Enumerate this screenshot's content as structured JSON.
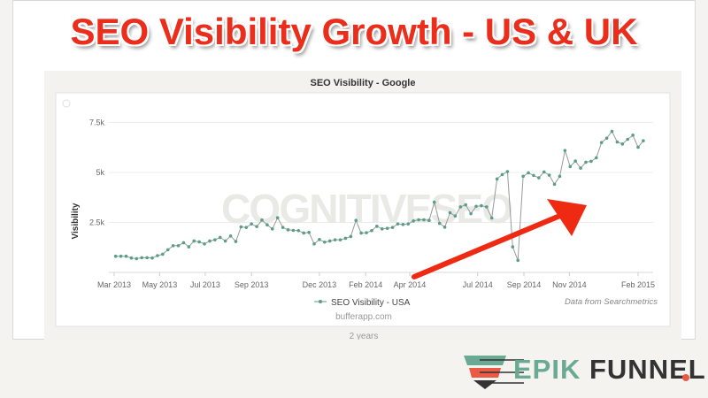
{
  "headline": "SEO Visibility Growth - US & UK",
  "logo": {
    "part1": "EPIK",
    "part2": "FUNNEL",
    "colors": {
      "green": "#6aaa95",
      "red": "#ea5a45",
      "dark": "#333333"
    }
  },
  "accent_color": "#ea2e1b",
  "chart_data": {
    "type": "line",
    "title": "SEO Visibility - Google",
    "ylabel": "Visibility",
    "xlabel": "",
    "ylim": [
      0,
      8000
    ],
    "yticks": [
      {
        "v": 2500,
        "label": "2.5k"
      },
      {
        "v": 5000,
        "label": "5k"
      },
      {
        "v": 7500,
        "label": "7.5k"
      }
    ],
    "xticks": [
      {
        "date": "2013-03-01",
        "label": "Mar 2013"
      },
      {
        "date": "2013-05-01",
        "label": "May 2013"
      },
      {
        "date": "2013-07-01",
        "label": "Jul 2013"
      },
      {
        "date": "2013-09-01",
        "label": "Sep 2013"
      },
      {
        "date": "2013-12-01",
        "label": "Dec 2013"
      },
      {
        "date": "2014-02-01",
        "label": "Feb 2014"
      },
      {
        "date": "2014-04-01",
        "label": "Apr 2014"
      },
      {
        "date": "2014-07-01",
        "label": "Jul 2014"
      },
      {
        "date": "2014-09-01",
        "label": "Sep 2014"
      },
      {
        "date": "2014-11-01",
        "label": "Nov 2014"
      },
      {
        "date": "2015-02-01",
        "label": "Feb 2015"
      }
    ],
    "grid": true,
    "legend": "bottom-center",
    "series": [
      {
        "name": "SEO Visibility - USA",
        "color": "#5a9e8a",
        "points": [
          [
            "2013-03-03",
            809
          ],
          [
            "2013-03-10",
            809
          ],
          [
            "2013-03-17",
            809
          ],
          [
            "2013-03-24",
            720
          ],
          [
            "2013-03-31",
            690
          ],
          [
            "2013-04-07",
            735
          ],
          [
            "2013-04-14",
            735
          ],
          [
            "2013-04-21",
            720
          ],
          [
            "2013-04-28",
            838
          ],
          [
            "2013-05-05",
            911
          ],
          [
            "2013-05-12",
            1132
          ],
          [
            "2013-05-19",
            1338
          ],
          [
            "2013-05-26",
            1338
          ],
          [
            "2013-06-02",
            1485
          ],
          [
            "2013-06-09",
            1279
          ],
          [
            "2013-06-16",
            1573
          ],
          [
            "2013-06-23",
            1529
          ],
          [
            "2013-06-30",
            1426
          ],
          [
            "2013-07-07",
            1573
          ],
          [
            "2013-07-14",
            1632
          ],
          [
            "2013-07-21",
            1749
          ],
          [
            "2013-07-28",
            1573
          ],
          [
            "2013-08-04",
            1823
          ],
          [
            "2013-08-11",
            1544
          ],
          [
            "2013-08-18",
            2279
          ],
          [
            "2013-08-25",
            2250
          ],
          [
            "2013-09-01",
            2426
          ],
          [
            "2013-09-08",
            2293
          ],
          [
            "2013-09-15",
            2617
          ],
          [
            "2013-09-22",
            2381
          ],
          [
            "2013-09-29",
            2176
          ],
          [
            "2013-10-06",
            2734
          ],
          [
            "2013-10-13",
            2250
          ],
          [
            "2013-10-20",
            2132
          ],
          [
            "2013-10-27",
            2102
          ],
          [
            "2013-11-03",
            2088
          ],
          [
            "2013-11-10",
            1970
          ],
          [
            "2013-11-17",
            2000
          ],
          [
            "2013-11-24",
            1426
          ],
          [
            "2013-12-01",
            1646
          ],
          [
            "2013-12-08",
            1514
          ],
          [
            "2013-12-15",
            1573
          ],
          [
            "2013-12-22",
            1632
          ],
          [
            "2013-12-29",
            1632
          ],
          [
            "2014-01-05",
            1705
          ],
          [
            "2014-01-12",
            1793
          ],
          [
            "2014-01-19",
            2602
          ],
          [
            "2014-01-26",
            1970
          ],
          [
            "2014-02-02",
            1985
          ],
          [
            "2014-02-09",
            2088
          ],
          [
            "2014-02-16",
            2308
          ],
          [
            "2014-02-23",
            2176
          ],
          [
            "2014-03-02",
            2205
          ],
          [
            "2014-03-09",
            2250
          ],
          [
            "2014-03-16",
            2426
          ],
          [
            "2014-03-23",
            2396
          ],
          [
            "2014-03-30",
            2426
          ],
          [
            "2014-04-06",
            2573
          ],
          [
            "2014-04-13",
            2631
          ],
          [
            "2014-04-20",
            2631
          ],
          [
            "2014-04-27",
            2602
          ],
          [
            "2014-05-04",
            3513
          ],
          [
            "2014-05-11",
            2455
          ],
          [
            "2014-05-18",
            2264
          ],
          [
            "2014-05-25",
            2984
          ],
          [
            "2014-06-01",
            2822
          ],
          [
            "2014-06-08",
            3278
          ],
          [
            "2014-06-15",
            3381
          ],
          [
            "2014-06-22",
            2940
          ],
          [
            "2014-06-29",
            3307
          ],
          [
            "2014-07-06",
            3337
          ],
          [
            "2014-07-13",
            3278
          ],
          [
            "2014-07-20",
            2720
          ],
          [
            "2014-07-27",
            4675
          ],
          [
            "2014-08-03",
            4895
          ],
          [
            "2014-08-10",
            5042
          ],
          [
            "2014-08-17",
            1279
          ],
          [
            "2014-08-24",
            603
          ],
          [
            "2014-08-31",
            4807
          ],
          [
            "2014-09-07",
            4983
          ],
          [
            "2014-09-14",
            4851
          ],
          [
            "2014-09-21",
            4733
          ],
          [
            "2014-09-28",
            5027
          ],
          [
            "2014-10-05",
            4866
          ],
          [
            "2014-10-12",
            4410
          ],
          [
            "2014-10-19",
            4807
          ],
          [
            "2014-10-26",
            6100
          ],
          [
            "2014-11-02",
            5292
          ],
          [
            "2014-11-09",
            5571
          ],
          [
            "2014-11-16",
            5218
          ],
          [
            "2014-11-23",
            5512
          ],
          [
            "2014-11-30",
            5557
          ],
          [
            "2014-12-07",
            5733
          ],
          [
            "2014-12-14",
            6497
          ],
          [
            "2014-12-21",
            6718
          ],
          [
            "2014-12-28",
            7056
          ],
          [
            "2015-01-04",
            6527
          ],
          [
            "2015-01-11",
            6424
          ],
          [
            "2015-01-18",
            6659
          ],
          [
            "2015-01-25",
            6865
          ],
          [
            "2015-02-01",
            6262
          ],
          [
            "2015-02-08",
            6586
          ]
        ]
      }
    ],
    "annotations": {
      "credit": "Data from Searchmetrics",
      "source": "bufferapp.com",
      "watermark": "COGNITIVESEO",
      "range_label": "2 years"
    }
  }
}
